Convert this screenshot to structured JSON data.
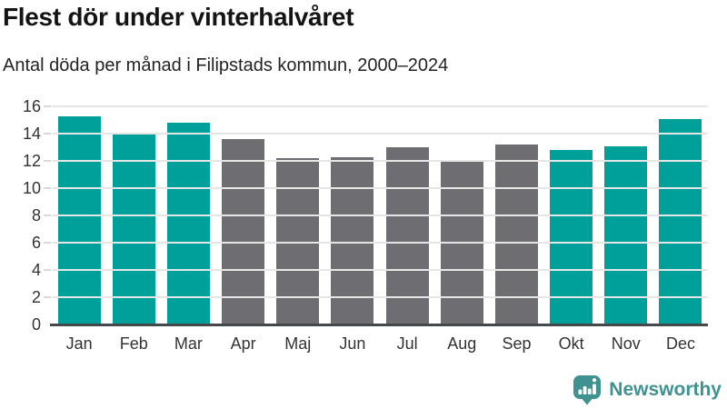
{
  "header": {
    "title": "Flest dör under vinterhalvåret",
    "subtitle": "Antal döda per månad i Filipstads kommun, 2000–2024"
  },
  "chart_data": {
    "type": "bar",
    "title": "Flest dör under vinterhalvåret",
    "subtitle": "Antal döda per månad i Filipstads kommun, 2000–2024",
    "categories": [
      "Jan",
      "Feb",
      "Mar",
      "Apr",
      "Maj",
      "Jun",
      "Jul",
      "Aug",
      "Sep",
      "Okt",
      "Nov",
      "Dec"
    ],
    "values": [
      15.3,
      14.0,
      14.8,
      13.6,
      12.2,
      12.3,
      13.0,
      12.0,
      13.2,
      12.8,
      13.1,
      15.1
    ],
    "bar_colors": [
      "#00a09a",
      "#00a09a",
      "#00a09a",
      "#6d6d72",
      "#6d6d72",
      "#6d6d72",
      "#6d6d72",
      "#6d6d72",
      "#6d6d72",
      "#00a09a",
      "#00a09a",
      "#00a09a"
    ],
    "highlighted_months": [
      "Jan",
      "Feb",
      "Mar",
      "Okt",
      "Nov",
      "Dec"
    ],
    "palette": {
      "winter_accent": "#00a09a",
      "summer_muted": "#6d6d72"
    },
    "xlabel": "",
    "ylabel": "",
    "ylim": [
      0,
      16
    ],
    "yticks": [
      0,
      2,
      4,
      6,
      8,
      10,
      12,
      14,
      16
    ],
    "grid": "horizontal",
    "legend": "none"
  },
  "style": {
    "gridline_color": "#e6e6e6",
    "tick_color": "#d9d9d9",
    "axis_color": "#44474c",
    "label_color": "#333333"
  },
  "footer": {
    "brand": "Newsworthy",
    "brand_color": "#3f928f",
    "logo_icon": "speech-bubble-bar-chart-icon"
  }
}
